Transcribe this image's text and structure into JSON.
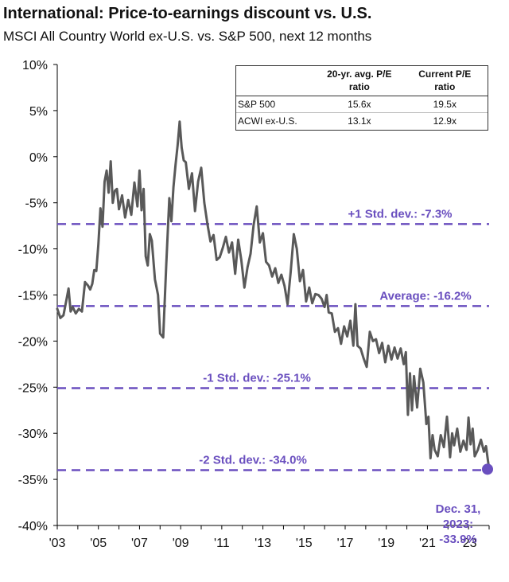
{
  "chart_data": {
    "type": "line",
    "title": "International: Price-to-earnings discount vs. U.S.",
    "subtitle": "MSCI All Country World ex-U.S. vs. S&P 500, next 12 months",
    "ylim": [
      -40,
      10
    ],
    "y_ticks": [
      10,
      5,
      0,
      -5,
      -10,
      -15,
      -20,
      -25,
      -30,
      -35,
      -40
    ],
    "y_tick_labels": [
      "10%",
      "5%",
      "0%",
      "-5%",
      "-10%",
      "-15%",
      "-20%",
      "-25%",
      "-30%",
      "-35%",
      "-40%"
    ],
    "xlim": [
      2003,
      2024
    ],
    "x_ticks": [
      2003,
      2005,
      2007,
      2009,
      2011,
      2013,
      2015,
      2017,
      2019,
      2021,
      2023
    ],
    "x_tick_labels": [
      "'03",
      "'05",
      "'07",
      "'09",
      "'11",
      "'13",
      "'15",
      "'17",
      "'19",
      "'21",
      "'23"
    ],
    "series": [
      {
        "name": "ACWI ex-U.S. vs. S&P 500 P/E discount",
        "color": "#595959",
        "x": [
          2003.0,
          2003.15,
          2003.3,
          2003.45,
          2003.55,
          2003.65,
          2003.75,
          2003.9,
          2004.05,
          2004.2,
          2004.35,
          2004.5,
          2004.6,
          2004.7,
          2004.8,
          2004.9,
          2005.0,
          2005.1,
          2005.2,
          2005.3,
          2005.4,
          2005.5,
          2005.6,
          2005.7,
          2005.8,
          2005.9,
          2006.0,
          2006.15,
          2006.3,
          2006.45,
          2006.6,
          2006.75,
          2006.9,
          2007.0,
          2007.1,
          2007.2,
          2007.3,
          2007.4,
          2007.5,
          2007.6,
          2007.75,
          2007.9,
          2008.0,
          2008.15,
          2008.3,
          2008.45,
          2008.55,
          2008.65,
          2008.75,
          2008.85,
          2008.95,
          2009.05,
          2009.15,
          2009.25,
          2009.4,
          2009.55,
          2009.7,
          2009.85,
          2010.0,
          2010.15,
          2010.3,
          2010.45,
          2010.6,
          2010.75,
          2010.9,
          2011.05,
          2011.2,
          2011.35,
          2011.5,
          2011.65,
          2011.8,
          2011.95,
          2012.1,
          2012.25,
          2012.4,
          2012.55,
          2012.7,
          2012.85,
          2013.0,
          2013.15,
          2013.3,
          2013.45,
          2013.6,
          2013.75,
          2013.9,
          2014.05,
          2014.2,
          2014.35,
          2014.5,
          2014.65,
          2014.8,
          2014.95,
          2015.1,
          2015.25,
          2015.4,
          2015.55,
          2015.7,
          2015.85,
          2016.0,
          2016.1,
          2016.2,
          2016.35,
          2016.5,
          2016.65,
          2016.8,
          2016.95,
          2017.1,
          2017.25,
          2017.4,
          2017.5,
          2017.6,
          2017.75,
          2017.9,
          2018.05,
          2018.2,
          2018.35,
          2018.5,
          2018.65,
          2018.8,
          2018.95,
          2019.1,
          2019.25,
          2019.4,
          2019.55,
          2019.7,
          2019.85,
          2019.95,
          2020.05,
          2020.15,
          2020.25,
          2020.35,
          2020.5,
          2020.65,
          2020.8,
          2020.95,
          2021.05,
          2021.15,
          2021.25,
          2021.35,
          2021.5,
          2021.65,
          2021.8,
          2021.95,
          2022.1,
          2022.2,
          2022.3,
          2022.45,
          2022.6,
          2022.75,
          2022.9,
          2023.0,
          2023.1,
          2023.2,
          2023.3,
          2023.45,
          2023.6,
          2023.75,
          2023.85,
          2024.0
        ],
        "values": [
          -16.5,
          -17.5,
          -17.2,
          -15.5,
          -14.3,
          -16.8,
          -16.3,
          -17.0,
          -16.5,
          -16.8,
          -13.6,
          -14.0,
          -14.4,
          -13.8,
          -12.3,
          -12.4,
          -9.5,
          -5.6,
          -7.6,
          -2.7,
          -1.5,
          -3.9,
          -0.5,
          -5.0,
          -3.7,
          -3.5,
          -5.7,
          -4.2,
          -6.6,
          -4.7,
          -6.3,
          -2.8,
          -5.4,
          -1.5,
          -5.8,
          -3.5,
          -10.8,
          -11.8,
          -8.4,
          -9.1,
          -13.3,
          -15.0,
          -19.2,
          -19.6,
          -11.8,
          -4.5,
          -7.0,
          -3.3,
          -0.9,
          1.2,
          3.8,
          1.0,
          -0.4,
          -0.6,
          -3.5,
          -1.8,
          -5.9,
          -2.7,
          -1.2,
          -5.0,
          -7.3,
          -9.2,
          -8.5,
          -11.2,
          -10.9,
          -9.9,
          -8.7,
          -10.4,
          -9.3,
          -12.7,
          -9.0,
          -11.2,
          -14.2,
          -12.0,
          -10.5,
          -7.4,
          -5.4,
          -9.3,
          -8.3,
          -11.4,
          -11.8,
          -13.0,
          -12.1,
          -13.7,
          -12.8,
          -14.0,
          -16.0,
          -12.5,
          -8.4,
          -10.0,
          -13.5,
          -12.3,
          -15.7,
          -14.2,
          -15.9,
          -14.9,
          -15.0,
          -15.4,
          -16.3,
          -15.0,
          -16.9,
          -17.0,
          -19.0,
          -18.6,
          -20.3,
          -18.4,
          -19.5,
          -17.8,
          -20.5,
          -16.0,
          -20.5,
          -20.8,
          -21.9,
          -22.8,
          -19.0,
          -20.0,
          -19.8,
          -21.3,
          -20.2,
          -22.3,
          -20.5,
          -22.0,
          -20.7,
          -21.9,
          -20.8,
          -22.5,
          -21.2,
          -28.0,
          -23.5,
          -27.5,
          -23.8,
          -27.2,
          -23.0,
          -24.5,
          -29.0,
          -28.2,
          -32.7,
          -30.2,
          -31.8,
          -32.5,
          -30.2,
          -31.5,
          -28.2,
          -32.6,
          -30.0,
          -31.3,
          -29.5,
          -32.0,
          -30.8,
          -31.8,
          -28.3,
          -31.2,
          -29.5,
          -32.5,
          -31.8,
          -30.7,
          -32.0,
          -31.4,
          -33.9
        ]
      }
    ],
    "reference_lines": [
      {
        "label": "+1 Std. dev.: -7.3%",
        "value": -7.3
      },
      {
        "label": "Average: -16.2%",
        "value": -16.2
      },
      {
        "label": "-1 Std. dev.: -25.1%",
        "value": -25.1
      },
      {
        "label": "-2 Std. dev.: -34.0%",
        "value": -34.0
      }
    ],
    "reference_color": "#6a4fbf",
    "end_point": {
      "x": 2024.0,
      "y": -33.9,
      "label_lines": [
        "Dec. 31,",
        "2023:",
        "-33.9%"
      ]
    },
    "table": {
      "headers": [
        "",
        "20-yr. avg. P/E ratio",
        "Current P/E ratio"
      ],
      "header_lines": [
        [
          "",
          ""
        ],
        [
          "20-yr. avg. P/E",
          "ratio"
        ],
        [
          "Current P/E",
          "ratio"
        ]
      ],
      "rows": [
        [
          "S&P 500",
          "15.6x",
          "19.5x"
        ],
        [
          "ACWI ex-U.S.",
          "13.1x",
          "12.9x"
        ]
      ]
    }
  }
}
